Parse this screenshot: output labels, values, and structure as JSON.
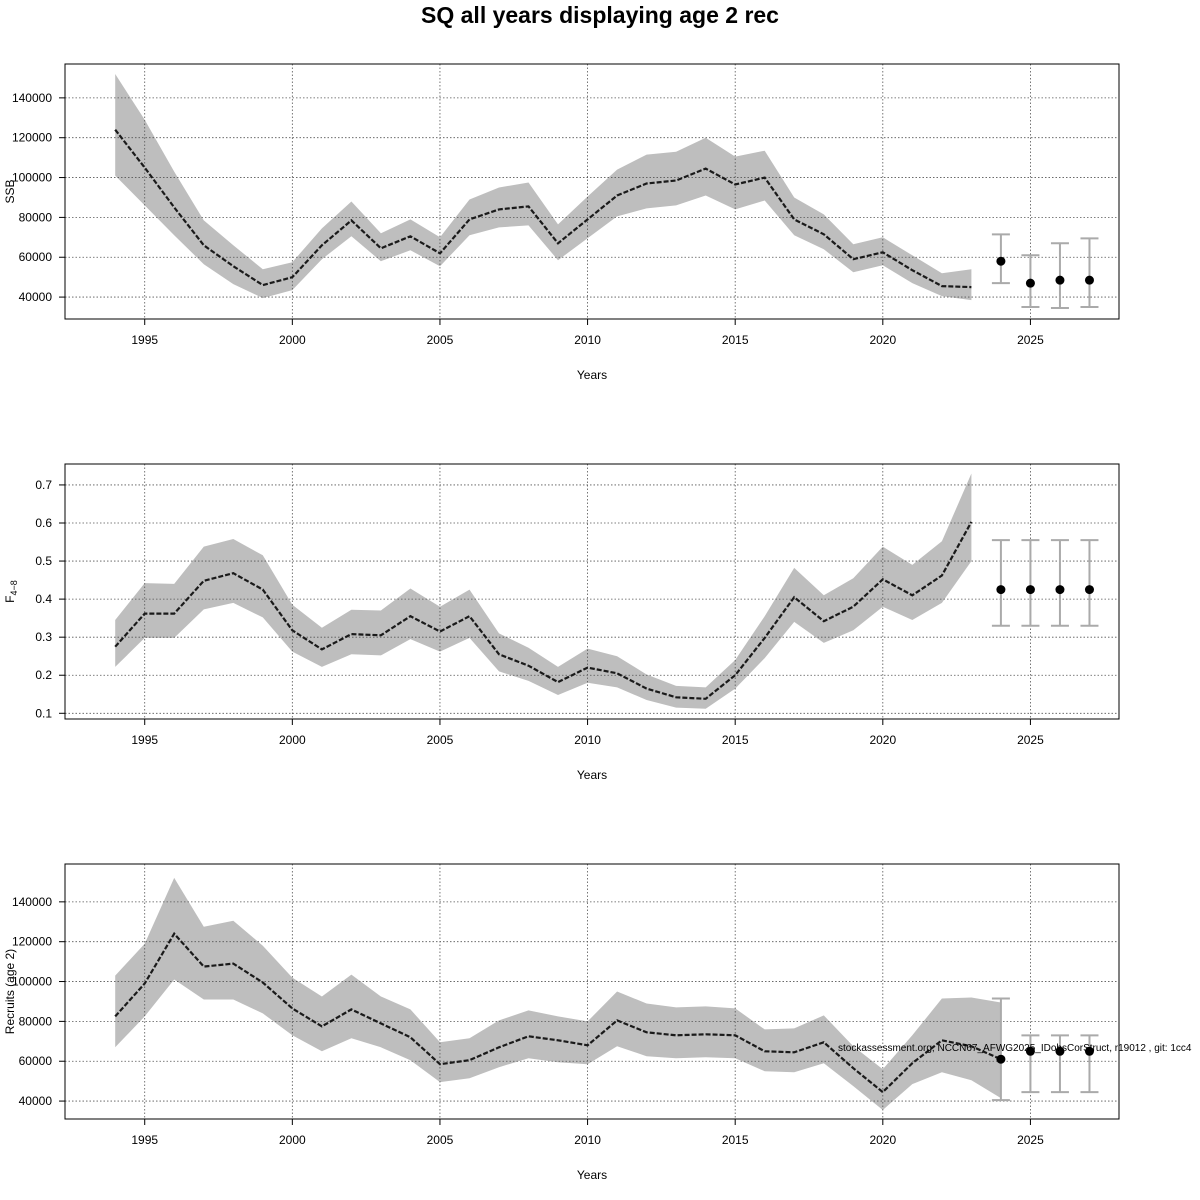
{
  "title": "SQ all years displaying age 2 rec",
  "footnote": "stockassessment.org, NCCN67_AFWG2025_IDobsCorStruct, r19012 , git: 1cc4",
  "colors": {
    "band": "#bebebe",
    "line": "#1a1a1a",
    "errorbar": "#aaaaaa",
    "grid": "#555555",
    "point": "#000000"
  },
  "chart_data": [
    {
      "type": "line",
      "ylabel": "SSB",
      "xlabel": "Years",
      "xlim": [
        1992.3,
        2028.0
      ],
      "ylim": [
        29000,
        157000
      ],
      "xticks": [
        1995,
        2000,
        2005,
        2010,
        2015,
        2020,
        2025
      ],
      "yticks": [
        40000,
        60000,
        80000,
        100000,
        120000,
        140000
      ],
      "grid": true,
      "x": [
        1994,
        1995,
        1996,
        1997,
        1998,
        1999,
        2000,
        2001,
        2002,
        2003,
        2004,
        2005,
        2006,
        2007,
        2008,
        2009,
        2010,
        2011,
        2012,
        2013,
        2014,
        2015,
        2016,
        2017,
        2018,
        2019,
        2020,
        2021,
        2022,
        2023
      ],
      "estimate": [
        124000,
        105000,
        85000,
        66000,
        55500,
        46000,
        50000,
        66000,
        78500,
        64500,
        70500,
        62000,
        79000,
        84000,
        85500,
        67000,
        79000,
        91000,
        97000,
        98500,
        104500,
        96500,
        100000,
        79000,
        71500,
        59000,
        62500,
        53500,
        45500,
        45000
      ],
      "upper": [
        152000,
        129000,
        103000,
        78500,
        66000,
        54000,
        57500,
        74500,
        88000,
        72000,
        79000,
        70000,
        89000,
        95000,
        97500,
        76500,
        90500,
        104000,
        111500,
        113000,
        120000,
        110500,
        113500,
        90000,
        81500,
        66500,
        70000,
        61000,
        52000,
        54000
      ],
      "lower": [
        101000,
        86000,
        71000,
        56500,
        46500,
        39500,
        43500,
        59000,
        70500,
        58000,
        63500,
        55500,
        71000,
        75000,
        76000,
        58500,
        69500,
        80500,
        84500,
        86000,
        91000,
        84000,
        88500,
        71000,
        64000,
        52500,
        56000,
        47000,
        40500,
        38500
      ],
      "forecast": {
        "x": [
          2024,
          2025,
          2026,
          2027
        ],
        "median": [
          58000,
          47000,
          48500,
          48500
        ],
        "low": [
          47000,
          35000,
          34500,
          35000
        ],
        "high": [
          71500,
          61000,
          67000,
          69500
        ]
      }
    },
    {
      "type": "line",
      "ylabel": "F4-8",
      "ylabel_main": "F",
      "ylabel_sub": "4−8",
      "xlabel": "Years",
      "xlim": [
        1992.3,
        2028.0
      ],
      "ylim": [
        0.085,
        0.755
      ],
      "xticks": [
        1995,
        2000,
        2005,
        2010,
        2015,
        2020,
        2025
      ],
      "yticks": [
        0.1,
        0.2,
        0.3,
        0.4,
        0.5,
        0.6,
        0.7
      ],
      "grid": true,
      "x": [
        1994,
        1995,
        1996,
        1997,
        1998,
        1999,
        2000,
        2001,
        2002,
        2003,
        2004,
        2005,
        2006,
        2007,
        2008,
        2009,
        2010,
        2011,
        2012,
        2013,
        2014,
        2015,
        2016,
        2017,
        2018,
        2019,
        2020,
        2021,
        2022,
        2023
      ],
      "estimate": [
        0.275,
        0.362,
        0.362,
        0.448,
        0.468,
        0.425,
        0.318,
        0.268,
        0.308,
        0.305,
        0.355,
        0.315,
        0.355,
        0.255,
        0.225,
        0.182,
        0.22,
        0.205,
        0.165,
        0.142,
        0.138,
        0.2,
        0.298,
        0.405,
        0.342,
        0.38,
        0.452,
        0.41,
        0.462,
        0.603
      ],
      "upper": [
        0.345,
        0.442,
        0.44,
        0.538,
        0.558,
        0.515,
        0.385,
        0.325,
        0.372,
        0.37,
        0.428,
        0.38,
        0.425,
        0.31,
        0.272,
        0.222,
        0.27,
        0.25,
        0.202,
        0.172,
        0.168,
        0.24,
        0.355,
        0.482,
        0.41,
        0.455,
        0.538,
        0.49,
        0.552,
        0.73
      ],
      "lower": [
        0.222,
        0.298,
        0.298,
        0.373,
        0.39,
        0.352,
        0.262,
        0.222,
        0.255,
        0.252,
        0.295,
        0.262,
        0.298,
        0.21,
        0.185,
        0.148,
        0.18,
        0.168,
        0.135,
        0.115,
        0.112,
        0.165,
        0.245,
        0.34,
        0.285,
        0.318,
        0.38,
        0.345,
        0.39,
        0.5
      ],
      "forecast": {
        "x": [
          2024,
          2025,
          2026,
          2027
        ],
        "median": [
          0.425,
          0.425,
          0.425,
          0.425
        ],
        "low": [
          0.33,
          0.33,
          0.33,
          0.33
        ],
        "high": [
          0.555,
          0.555,
          0.555,
          0.555
        ]
      }
    },
    {
      "type": "line",
      "ylabel": "Recruits (age 2)",
      "xlabel": "Years",
      "xlim": [
        1992.3,
        2028.0
      ],
      "ylim": [
        31000,
        159000
      ],
      "xticks": [
        1995,
        2000,
        2005,
        2010,
        2015,
        2020,
        2025
      ],
      "yticks": [
        40000,
        60000,
        80000,
        100000,
        120000,
        140000
      ],
      "grid": true,
      "x": [
        1994,
        1995,
        1996,
        1997,
        1998,
        1999,
        2000,
        2001,
        2002,
        2003,
        2004,
        2005,
        2006,
        2007,
        2008,
        2009,
        2010,
        2011,
        2012,
        2013,
        2014,
        2015,
        2016,
        2017,
        2018,
        2019,
        2020,
        2021,
        2022,
        2023,
        2024
      ],
      "estimate": [
        82500,
        99000,
        124000,
        107500,
        109000,
        99500,
        86500,
        77500,
        86000,
        79000,
        72000,
        58500,
        60500,
        67000,
        72500,
        70500,
        68000,
        80500,
        74500,
        73000,
        73500,
        73000,
        65000,
        64500,
        69500,
        56500,
        44500,
        59000,
        70500,
        67500,
        61000
      ],
      "upper": [
        103000,
        119000,
        152000,
        127500,
        130500,
        118000,
        102000,
        92500,
        103500,
        92500,
        86000,
        69500,
        71500,
        80500,
        85500,
        82500,
        80000,
        95000,
        89000,
        87000,
        87500,
        86500,
        76000,
        76500,
        83000,
        67500,
        56000,
        73000,
        91500,
        92000,
        89500
      ],
      "lower": [
        67000,
        82500,
        101000,
        91000,
        91000,
        84000,
        73000,
        65000,
        71500,
        67000,
        60500,
        49500,
        51500,
        57000,
        61500,
        59500,
        58500,
        67500,
        62500,
        61500,
        62000,
        61500,
        55000,
        54500,
        59000,
        47500,
        35500,
        48500,
        54500,
        50500,
        41500
      ],
      "forecast": {
        "x": [
          2024,
          2025,
          2026,
          2027
        ],
        "median": [
          61000,
          65000,
          65000,
          65000
        ],
        "low": [
          40500,
          44500,
          44500,
          44500
        ],
        "high": [
          91500,
          73000,
          73000,
          73000
        ]
      }
    }
  ]
}
